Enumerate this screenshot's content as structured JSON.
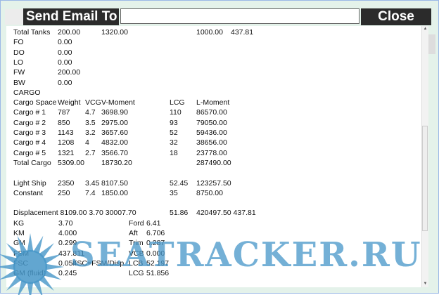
{
  "header": {
    "send_label": "Send Email To",
    "email_value": "",
    "close_label": "Close"
  },
  "report": {
    "tanks": [
      [
        "Total Tanks",
        "200.00",
        "",
        "1320.00",
        "",
        "1000.00",
        "437.81"
      ],
      [
        "FO",
        "0.00"
      ],
      [
        "DO",
        "0.00"
      ],
      [
        "LO",
        "0.00"
      ],
      [
        "FW",
        "200.00"
      ],
      [
        "BW",
        "0.00"
      ],
      [
        "CARGO"
      ]
    ],
    "cargo_header": [
      "Cargo Space",
      "Weight",
      "VCG",
      "V-Moment",
      "LCG",
      "L-Moment"
    ],
    "cargo": [
      [
        "Cargo # 1",
        "787",
        "4.7",
        "3698.90",
        "110",
        "86570.00"
      ],
      [
        "Cargo # 2",
        "850",
        "3.5",
        "2975.00",
        "93",
        "79050.00"
      ],
      [
        "Cargo # 3",
        "1143",
        "3.2",
        "3657.60",
        "52",
        "59436.00"
      ],
      [
        "Cargo # 4",
        "1208",
        "4",
        "4832.00",
        "32",
        "38656.00"
      ],
      [
        "Cargo # 5",
        "1321",
        "2.7",
        "3566.70",
        "18",
        "23778.00"
      ],
      [
        "Total Cargo",
        "5309.00",
        "",
        "18730.20",
        "",
        "287490.00"
      ]
    ],
    "other": [
      [
        "Light Ship",
        "2350",
        "3.45",
        "8107.50",
        "52.45",
        "123257.50"
      ],
      [
        "Constant",
        "250",
        "7.4",
        "1850.00",
        "35",
        "8750.00"
      ]
    ],
    "displacement": [
      "Displacement 8109.00 3.70 30007.70",
      "51.86",
      "420497.50 437.81"
    ],
    "stability": [
      [
        "KG",
        "3.70",
        "",
        "Ford",
        "6.41"
      ],
      [
        "KM",
        "4.000",
        "",
        "Aft",
        "6.706"
      ],
      [
        "GM",
        "0.299",
        "",
        "Trim",
        "0.287"
      ],
      [
        "FSM",
        "437.811",
        "",
        "VCB",
        "0.000"
      ],
      [
        "FSC",
        "0.054",
        "FSC=FSM/Disp",
        "LCB",
        "52.197"
      ],
      [
        "GM (fluid)",
        "0.245",
        "",
        "LCG",
        "51.856"
      ]
    ]
  },
  "watermark": "SEATRACKER.RU",
  "colors": {
    "header_bg": "#2b2b2b",
    "watermark": "#4696c8"
  }
}
